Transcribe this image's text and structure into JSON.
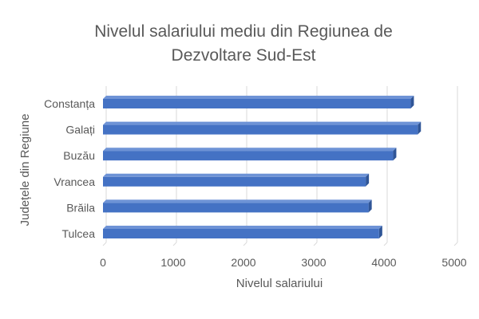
{
  "chart_data": {
    "type": "bar",
    "orientation": "horizontal",
    "style": "3d",
    "title": "Nivelul salariului mediu din Regiunea de Dezvoltare Sud-Est",
    "title_lines": [
      "Nivelul salariului mediu din Regiunea de",
      "Dezvoltare Sud-Est"
    ],
    "xlabel": "Nivelul salariului",
    "ylabel": "Județele din Regiune",
    "categories": [
      "Constanța",
      "Galați",
      "Buzău",
      "Vrancea",
      "Brăila",
      "Tulcea"
    ],
    "values": [
      4380,
      4480,
      4130,
      3740,
      3780,
      3930
    ],
    "xlim": [
      0,
      5000
    ],
    "xticks": [
      0,
      1000,
      2000,
      3000,
      4000,
      5000
    ],
    "grid": "vertical",
    "legend": "none",
    "colors": {
      "bar_front": "#4472C4",
      "bar_top": "#6E93D6",
      "bar_side": "#2F5597",
      "grid": "#D9D9D9",
      "text": "#595959"
    }
  }
}
